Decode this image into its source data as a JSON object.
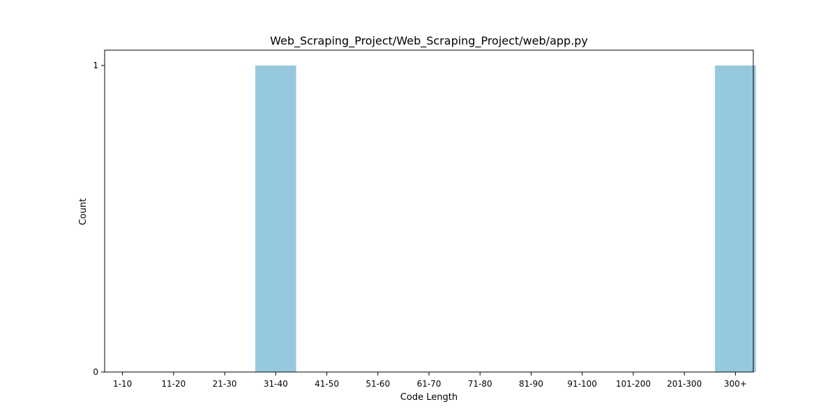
{
  "chart_data": {
    "type": "bar",
    "title": "Web_Scraping_Project/Web_Scraping_Project/web/app.py",
    "xlabel": "Code Length",
    "ylabel": "Count",
    "categories": [
      "1-10",
      "11-20",
      "21-30",
      "31-40",
      "41-50",
      "51-60",
      "61-70",
      "71-80",
      "81-90",
      "91-100",
      "101-200",
      "201-300",
      "300+"
    ],
    "values": [
      0,
      0,
      0,
      1,
      0,
      0,
      0,
      0,
      0,
      0,
      0,
      0,
      1
    ],
    "yticks": [
      0,
      1
    ],
    "ylim": [
      0,
      1
    ],
    "grid": false,
    "bar_color": "#96c9de"
  }
}
